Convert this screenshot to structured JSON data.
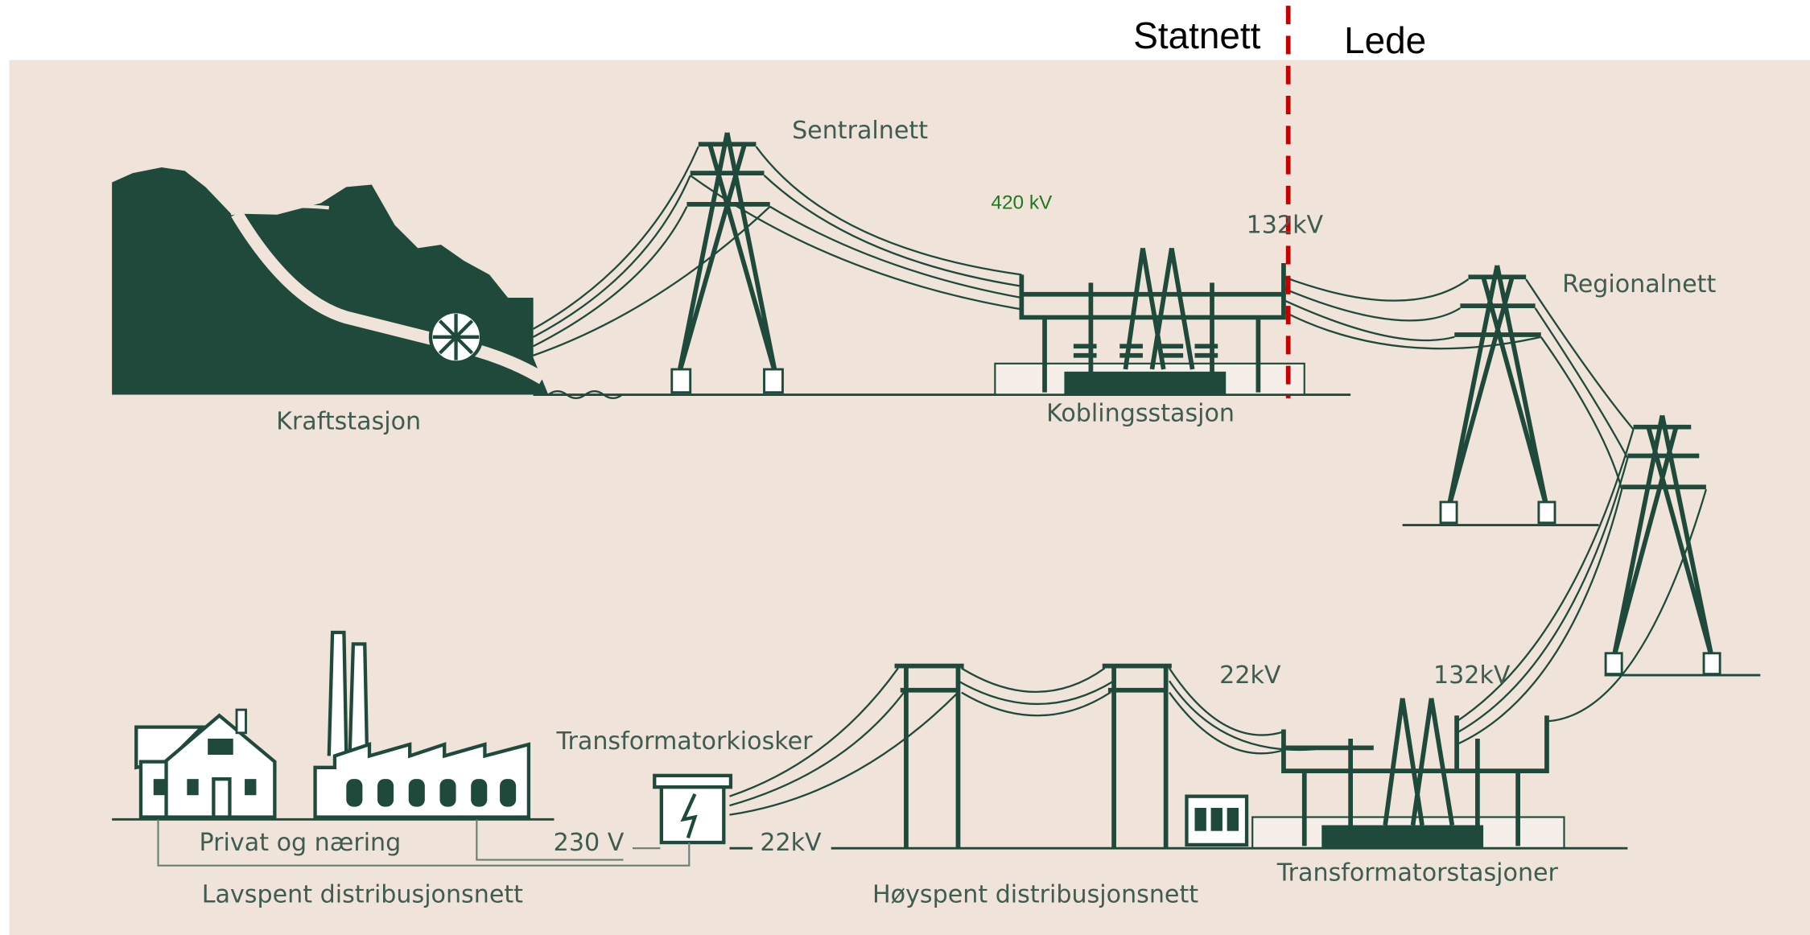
{
  "header": {
    "left": "Statnett",
    "right": "Lede"
  },
  "labels": {
    "central_grid": "Sentralnett",
    "voltage_420": "420 kV",
    "voltage_132_top": "132kV",
    "regional_grid": "Regionalnett",
    "power_station": "Kraftstasjon",
    "switching_station": "Koblingsstasjon",
    "transformer_kiosk": "Transformatorkiosker",
    "voltage_22_top": "22kV",
    "voltage_132_bottom": "132kV",
    "private_business": "Privat og næring",
    "voltage_230": "230 V",
    "voltage_22_bottom": "22kV",
    "low_voltage_net": "Lavspent distribusjonsnett",
    "high_voltage_net": "Høyspent distribusjonsnett",
    "transformer_stations": "Transformatorstasjoner"
  }
}
